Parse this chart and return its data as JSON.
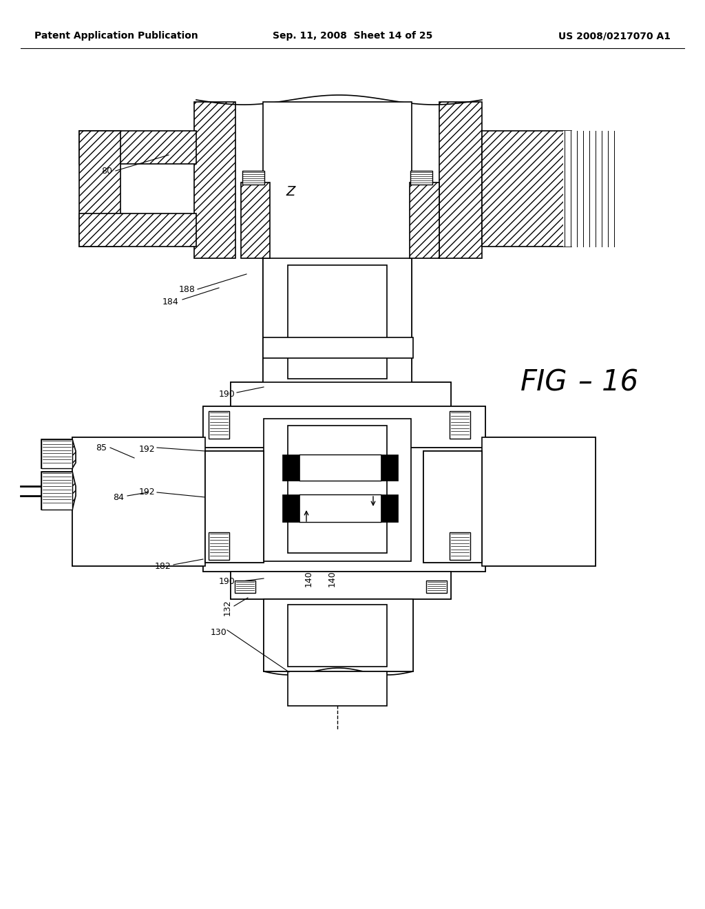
{
  "background_color": "#ffffff",
  "header_left": "Patent Application Publication",
  "header_mid": "Sep. 11, 2008  Sheet 14 of 25",
  "header_right": "US 2008/0217070 A1",
  "fig_label": "FIG-16",
  "line_color": "#000000"
}
